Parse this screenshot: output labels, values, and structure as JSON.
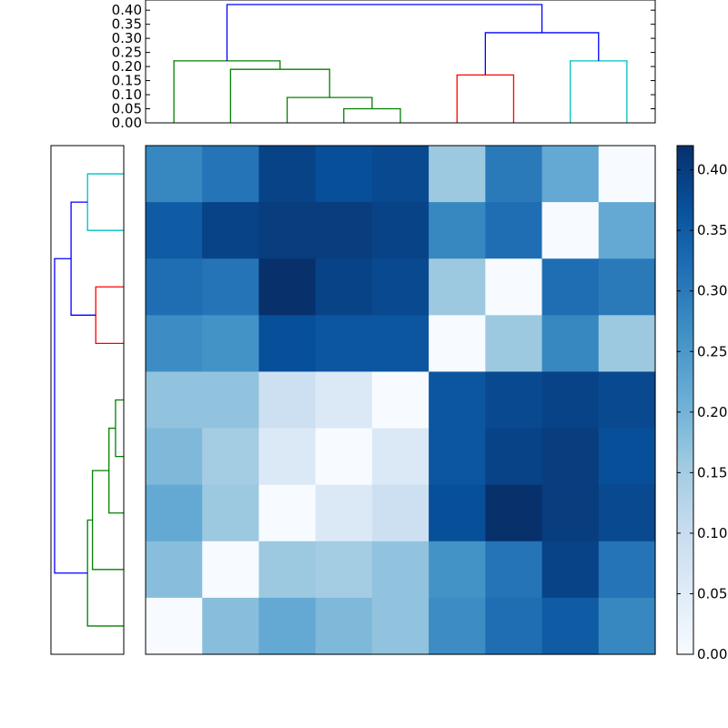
{
  "chart_data": {
    "type": "heatmap",
    "title": "",
    "xlabel": "",
    "ylabel": "",
    "matrix": [
      [
        0.28,
        0.31,
        0.39,
        0.37,
        0.38,
        0.16,
        0.3,
        0.22,
        0.0
      ],
      [
        0.35,
        0.39,
        0.4,
        0.4,
        0.39,
        0.28,
        0.32,
        0.0,
        0.22
      ],
      [
        0.32,
        0.31,
        0.42,
        0.39,
        0.38,
        0.16,
        0.0,
        0.32,
        0.3
      ],
      [
        0.27,
        0.26,
        0.37,
        0.36,
        0.36,
        0.0,
        0.16,
        0.28,
        0.16
      ],
      [
        0.17,
        0.17,
        0.09,
        0.06,
        0.0,
        0.36,
        0.38,
        0.39,
        0.38
      ],
      [
        0.19,
        0.15,
        0.06,
        0.0,
        0.06,
        0.36,
        0.39,
        0.4,
        0.37
      ],
      [
        0.22,
        0.16,
        0.0,
        0.06,
        0.09,
        0.37,
        0.42,
        0.4,
        0.38
      ],
      [
        0.18,
        0.0,
        0.16,
        0.15,
        0.17,
        0.26,
        0.31,
        0.39,
        0.31
      ],
      [
        0.0,
        0.18,
        0.22,
        0.19,
        0.17,
        0.27,
        0.32,
        0.35,
        0.28
      ]
    ],
    "color_range": [
      0,
      0.42
    ],
    "colorbar_ticks": [
      "0.00",
      "0.05",
      "0.10",
      "0.15",
      "0.20",
      "0.25",
      "0.30",
      "0.35",
      "0.40"
    ],
    "top_dendrogram": {
      "yticks": [
        "0.00",
        "0.05",
        "0.10",
        "0.15",
        "0.20",
        "0.25",
        "0.30",
        "0.35",
        "0.40"
      ],
      "ylim": [
        0,
        0.42
      ],
      "links": [
        {
          "from": [
            3.5,
            0.0
          ],
          "to": [
            4.5,
            0.0
          ],
          "height": 0.05,
          "color": "#008000"
        },
        {
          "from": [
            2.5,
            0.0
          ],
          "to": [
            4.0,
            0.05
          ],
          "height": 0.09,
          "color": "#008000"
        },
        {
          "from": [
            1.5,
            0.0
          ],
          "to": [
            3.25,
            0.09
          ],
          "height": 0.19,
          "color": "#008000"
        },
        {
          "from": [
            0.5,
            0.0
          ],
          "to": [
            2.375,
            0.19
          ],
          "height": 0.22,
          "color": "#008000"
        },
        {
          "from": [
            5.5,
            0.0
          ],
          "to": [
            6.5,
            0.0
          ],
          "height": 0.17,
          "color": "#ff0000"
        },
        {
          "from": [
            7.5,
            0.0
          ],
          "to": [
            8.5,
            0.0
          ],
          "height": 0.22,
          "color": "#00bfbf"
        },
        {
          "from": [
            6.0,
            0.17
          ],
          "to": [
            8.0,
            0.22
          ],
          "height": 0.32,
          "color": "#0000ff"
        },
        {
          "from": [
            1.4375,
            0.22
          ],
          "to": [
            7.0,
            0.32
          ],
          "height": 0.42,
          "color": "#0000ff"
        }
      ]
    },
    "left_dendrogram": {
      "links": [
        {
          "from": [
            0.5,
            0.0
          ],
          "to": [
            1.5,
            0.0
          ],
          "height": 0.22,
          "color": "#00bfbf"
        },
        {
          "from": [
            2.5,
            0.0
          ],
          "to": [
            3.5,
            0.0
          ],
          "height": 0.17,
          "color": "#ff0000"
        },
        {
          "from": [
            1.0,
            0.22
          ],
          "to": [
            3.0,
            0.17
          ],
          "height": 0.32,
          "color": "#0000ff"
        },
        {
          "from": [
            4.5,
            0.0
          ],
          "to": [
            5.5,
            0.0
          ],
          "height": 0.05,
          "color": "#008000"
        },
        {
          "from": [
            5.0,
            0.05
          ],
          "to": [
            6.5,
            0.0
          ],
          "height": 0.09,
          "color": "#008000"
        },
        {
          "from": [
            5.75,
            0.09
          ],
          "to": [
            7.5,
            0.0
          ],
          "height": 0.19,
          "color": "#008000"
        },
        {
          "from": [
            6.625,
            0.19
          ],
          "to": [
            8.5,
            0.0
          ],
          "height": 0.22,
          "color": "#008000"
        },
        {
          "from": [
            2.0,
            0.32
          ],
          "to": [
            7.5625,
            0.22
          ],
          "height": 0.42,
          "color": "#0000ff"
        }
      ]
    }
  }
}
